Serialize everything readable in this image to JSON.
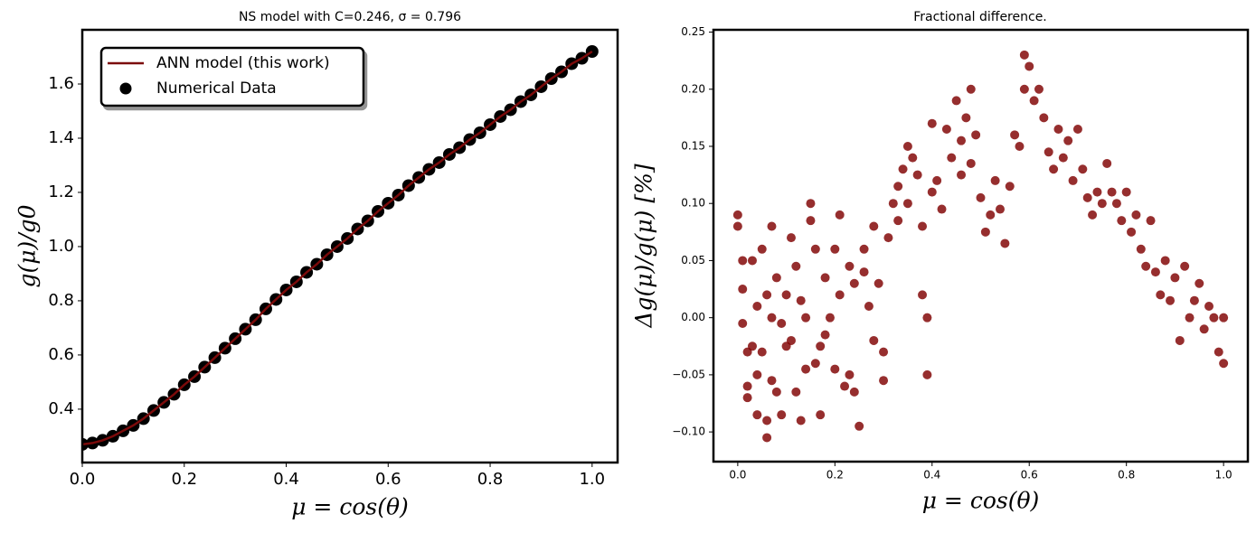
{
  "chart_data": [
    {
      "type": "line",
      "title": "NS model with C=0.246, σ = 0.796",
      "xlabel": "μ = cos(θ)",
      "ylabel": "g(μ)/g0",
      "x": [
        0,
        0.02,
        0.04,
        0.06,
        0.08,
        0.1,
        0.12,
        0.14,
        0.16,
        0.18,
        0.2,
        0.22,
        0.24,
        0.26,
        0.28,
        0.3,
        0.32,
        0.34,
        0.36,
        0.38,
        0.4,
        0.42,
        0.44,
        0.46,
        0.48,
        0.5,
        0.52,
        0.54,
        0.56,
        0.58,
        0.6,
        0.62,
        0.64,
        0.66,
        0.68,
        0.7,
        0.72,
        0.74,
        0.76,
        0.78,
        0.8,
        0.82,
        0.84,
        0.86,
        0.88,
        0.9,
        0.92,
        0.94,
        0.96,
        0.98,
        1.0
      ],
      "series": [
        {
          "name": "ANN model (this work)",
          "type": "line",
          "color": "#7b0a0a",
          "values": [
            0.27,
            0.275,
            0.285,
            0.3,
            0.32,
            0.34,
            0.365,
            0.395,
            0.425,
            0.455,
            0.49,
            0.52,
            0.555,
            0.59,
            0.625,
            0.66,
            0.695,
            0.73,
            0.77,
            0.805,
            0.84,
            0.87,
            0.905,
            0.935,
            0.97,
            1.0,
            1.03,
            1.065,
            1.095,
            1.13,
            1.16,
            1.19,
            1.225,
            1.255,
            1.285,
            1.31,
            1.34,
            1.365,
            1.395,
            1.42,
            1.45,
            1.48,
            1.505,
            1.535,
            1.56,
            1.59,
            1.62,
            1.645,
            1.675,
            1.695,
            1.72
          ]
        },
        {
          "name": "Numerical Data",
          "type": "scatter",
          "color": "#000000",
          "values": [
            0.27,
            0.275,
            0.285,
            0.3,
            0.32,
            0.34,
            0.365,
            0.395,
            0.425,
            0.455,
            0.49,
            0.52,
            0.555,
            0.59,
            0.625,
            0.66,
            0.695,
            0.73,
            0.77,
            0.805,
            0.84,
            0.87,
            0.905,
            0.935,
            0.97,
            1.0,
            1.03,
            1.065,
            1.095,
            1.13,
            1.16,
            1.19,
            1.225,
            1.255,
            1.285,
            1.31,
            1.34,
            1.365,
            1.395,
            1.42,
            1.45,
            1.48,
            1.505,
            1.535,
            1.56,
            1.59,
            1.62,
            1.645,
            1.675,
            1.695,
            1.72
          ]
        }
      ],
      "xlim": [
        0,
        1.05
      ],
      "xticks": [
        {
          "value": 0,
          "label": "0.0"
        },
        0.2,
        0.4,
        0.6,
        0.8,
        {
          "value": 1,
          "label": "1.0"
        }
      ],
      "ylim": [
        0.203,
        1.8
      ],
      "yticks": [
        0.4,
        0.6,
        0.8,
        {
          "value": 1,
          "label": "1.0"
        },
        1.2,
        1.4,
        1.6
      ],
      "legend": "upper left"
    },
    {
      "type": "scatter",
      "title": "Fractional difference.",
      "xlabel": "μ = cos(θ)",
      "ylabel": "Δg(μ)/g(μ)  [%]",
      "color": "#7f0000",
      "x": [
        0,
        0,
        0.01,
        0.01,
        0.01,
        0.02,
        0.02,
        0.02,
        0.03,
        0.03,
        0.04,
        0.04,
        0.04,
        0.05,
        0.05,
        0.06,
        0.06,
        0.06,
        0.07,
        0.07,
        0.07,
        0.08,
        0.08,
        0.09,
        0.09,
        0.1,
        0.1,
        0.11,
        0.11,
        0.12,
        0.12,
        0.13,
        0.13,
        0.14,
        0.14,
        0.15,
        0.15,
        0.16,
        0.16,
        0.17,
        0.17,
        0.18,
        0.18,
        0.19,
        0.2,
        0.2,
        0.21,
        0.21,
        0.22,
        0.23,
        0.23,
        0.24,
        0.24,
        0.25,
        0.26,
        0.26,
        0.27,
        0.28,
        0.28,
        0.29,
        0.3,
        0.3,
        0.31,
        0.32,
        0.33,
        0.33,
        0.34,
        0.35,
        0.35,
        0.36,
        0.37,
        0.38,
        0.38,
        0.39,
        0.39,
        0.4,
        0.4,
        0.41,
        0.42,
        0.43,
        0.44,
        0.45,
        0.46,
        0.46,
        0.47,
        0.48,
        0.48,
        0.49,
        0.5,
        0.51,
        0.52,
        0.53,
        0.54,
        0.55,
        0.56,
        0.57,
        0.58,
        0.59,
        0.59,
        0.6,
        0.61,
        0.62,
        0.63,
        0.64,
        0.65,
        0.66,
        0.67,
        0.68,
        0.69,
        0.7,
        0.71,
        0.72,
        0.73,
        0.74,
        0.75,
        0.76,
        0.77,
        0.78,
        0.79,
        0.8,
        0.81,
        0.82,
        0.83,
        0.84,
        0.85,
        0.86,
        0.87,
        0.88,
        0.89,
        0.9,
        0.91,
        0.92,
        0.93,
        0.94,
        0.95,
        0.96,
        0.97,
        0.98,
        0.99,
        1,
        1
      ],
      "values": [
        0.09,
        0.08,
        0.05,
        0.025,
        -0.005,
        -0.03,
        -0.06,
        -0.07,
        0.05,
        -0.025,
        -0.05,
        -0.085,
        0.01,
        0.06,
        -0.03,
        -0.105,
        -0.09,
        0.02,
        -0.055,
        0.08,
        0,
        -0.065,
        0.035,
        -0.005,
        -0.085,
        0.02,
        -0.025,
        0.07,
        -0.02,
        0.045,
        -0.065,
        -0.09,
        0.015,
        0,
        -0.045,
        0.085,
        0.1,
        -0.04,
        0.06,
        -0.085,
        -0.025,
        -0.015,
        0.035,
        0,
        -0.045,
        0.06,
        0.09,
        0.02,
        -0.06,
        0.045,
        -0.05,
        0.03,
        -0.065,
        -0.095,
        0.06,
        0.04,
        0.01,
        0.08,
        -0.02,
        0.03,
        -0.055,
        -0.03,
        0.07,
        0.1,
        0.115,
        0.085,
        0.13,
        0.15,
        0.1,
        0.14,
        0.125,
        0.08,
        0.02,
        -0.05,
        0,
        0.11,
        0.17,
        0.12,
        0.095,
        0.165,
        0.14,
        0.19,
        0.155,
        0.125,
        0.175,
        0.2,
        0.135,
        0.16,
        0.105,
        0.075,
        0.09,
        0.12,
        0.095,
        0.065,
        0.115,
        0.16,
        0.15,
        0.2,
        0.23,
        0.22,
        0.19,
        0.2,
        0.175,
        0.145,
        0.13,
        0.165,
        0.14,
        0.155,
        0.12,
        0.165,
        0.13,
        0.105,
        0.09,
        0.11,
        0.1,
        0.135,
        0.11,
        0.1,
        0.085,
        0.11,
        0.075,
        0.09,
        0.06,
        0.045,
        0.085,
        0.04,
        0.02,
        0.05,
        0.015,
        0.035,
        -0.02,
        0.045,
        0,
        0.015,
        0.03,
        -0.01,
        0.01,
        0,
        -0.03,
        0,
        -0.04
      ],
      "xlim": [
        -0.05,
        1.05
      ],
      "xticks": [
        {
          "value": 0,
          "label": "0.0"
        },
        0.2,
        0.4,
        0.6,
        0.8,
        {
          "value": 1,
          "label": "1.0"
        }
      ],
      "ylim": [
        -0.126,
        0.252
      ],
      "yticks": [
        {
          "value": -0.1,
          "label": "−0.10"
        },
        {
          "value": -0.05,
          "label": "−0.05"
        },
        {
          "value": 0,
          "label": "0.00"
        },
        0.05,
        {
          "value": 0.1,
          "label": "0.10"
        },
        0.15,
        {
          "value": 0.2,
          "label": "0.20"
        },
        0.25
      ]
    }
  ]
}
